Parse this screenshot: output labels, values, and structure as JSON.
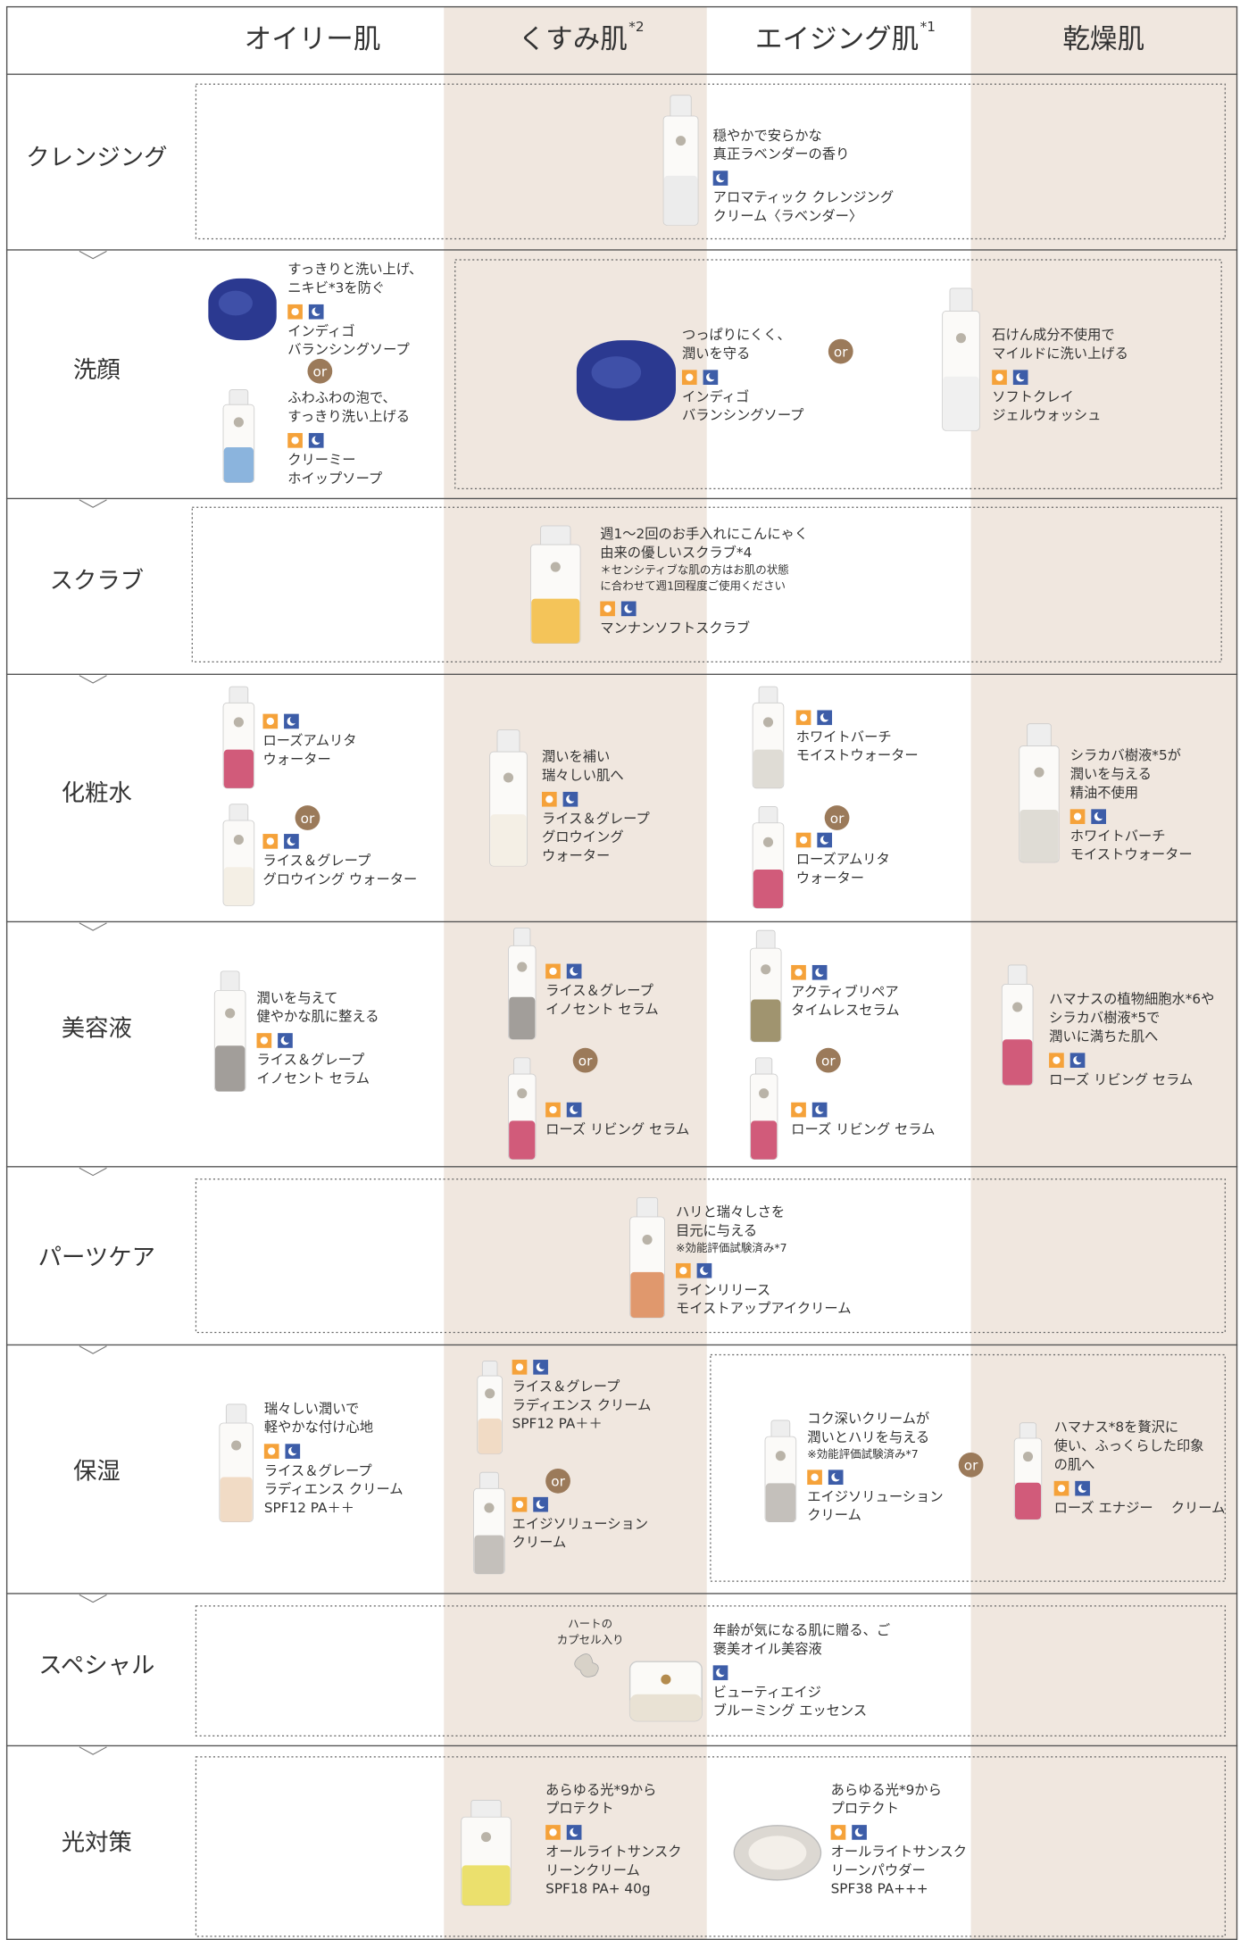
{
  "header": {
    "columns": [
      {
        "label": "オイリー肌"
      },
      {
        "label": "くすみ肌",
        "note": "*2"
      },
      {
        "label": "エイジング肌",
        "note": "*1"
      },
      {
        "label": "乾燥肌"
      }
    ]
  },
  "connector": "or",
  "rows": [
    {
      "label": "クレンジング",
      "products": [
        {
          "desc": [
            "穏やかで安らかな",
            "真正ラベンダーの香り"
          ],
          "name": [
            "アロマティック クレンジング",
            "クリーム〈ラベンダー〉"
          ]
        }
      ]
    },
    {
      "label": "洗顔",
      "products": [
        {
          "desc": [
            "すっきりと洗い上げ、",
            "ニキビ*3を防ぐ"
          ],
          "name": [
            "インディゴ",
            "バランシングソープ"
          ]
        },
        {
          "desc": [
            "ふわふわの泡で、",
            "すっきり洗い上げる"
          ],
          "name": [
            "クリーミー",
            "ホイップソープ"
          ]
        },
        {
          "desc": [
            "つっぱりにくく、",
            "潤いを守る"
          ],
          "name": [
            "インディゴ",
            "バランシングソープ"
          ]
        },
        {
          "desc": [
            "石けん成分不使用で",
            "マイルドに洗い上げる"
          ],
          "name": [
            "ソフトクレイ",
            "ジェルウォッシュ"
          ]
        }
      ]
    },
    {
      "label": "スクラブ",
      "products": [
        {
          "desc": [
            "週1～2回のお手入れにこんにゃく",
            "由来の優しいスクラブ*4"
          ],
          "note": [
            "＊センシティブな肌の方はお肌の状態",
            "に合わせて週1回程度ご使用ください"
          ],
          "name": [
            "マンナンソフトスクラブ"
          ]
        }
      ]
    },
    {
      "label": "化粧水",
      "products": [
        {
          "name": [
            "ローズアムリタ",
            "ウォーター"
          ]
        },
        {
          "name": [
            "ライス＆グレープ",
            "グロウイング ウォーター"
          ]
        },
        {
          "desc": [
            "潤いを補い",
            "瑞々しい肌へ"
          ],
          "name": [
            "ライス＆グレープ",
            "グロウイング",
            "ウォーター"
          ]
        },
        {
          "name": [
            "ホワイトバーチ",
            "モイストウォーター"
          ]
        },
        {
          "name": [
            "ローズアムリタ",
            "ウォーター"
          ]
        },
        {
          "desc": [
            "シラカバ樹液*5が",
            "潤いを与える",
            "精油不使用"
          ],
          "name": [
            "ホワイトバーチ",
            "モイストウォーター"
          ]
        }
      ]
    },
    {
      "label": "美容液",
      "products": [
        {
          "desc": [
            "潤いを与えて",
            "健やかな肌に整える"
          ],
          "name": [
            "ライス＆グレープ",
            "イノセント セラム"
          ]
        },
        {
          "name": [
            "ライス＆グレープ",
            "イノセント セラム"
          ]
        },
        {
          "name": [
            "ローズ リビング セラム"
          ]
        },
        {
          "name": [
            "アクティブリペア",
            "タイムレスセラム"
          ]
        },
        {
          "name": [
            "ローズ リビング セラム"
          ]
        },
        {
          "desc": [
            "ハマナスの植物細胞水*6や",
            "シラカバ樹液*5で",
            "潤いに満ちた肌へ"
          ],
          "name": [
            "ローズ リビング セラム"
          ]
        }
      ]
    },
    {
      "label": "パーツケア",
      "products": [
        {
          "desc": [
            "ハリと瑞々しさを",
            "目元に与える"
          ],
          "note": [
            "※効能評価試験済み*7"
          ],
          "name": [
            "ラインリリース",
            "モイストアップアイクリーム"
          ]
        }
      ]
    },
    {
      "label": "保湿",
      "products": [
        {
          "desc": [
            "瑞々しい潤いで",
            "軽やかな付け心地"
          ],
          "name": [
            "ライス＆グレープ",
            "ラディエンス クリーム",
            "SPF12 PA＋＋"
          ]
        },
        {
          "name": [
            "ライス＆グレープ",
            "ラディエンス クリーム",
            "SPF12 PA＋＋"
          ]
        },
        {
          "name": [
            "エイジソリューション",
            "クリーム"
          ]
        },
        {
          "desc": [
            "コク深いクリームが",
            "潤いとハリを与える"
          ],
          "note": [
            "※効能評価試験済み*7"
          ],
          "name": [
            "エイジソリューション",
            "クリーム"
          ]
        },
        {
          "desc": [
            "ハマナス*8を贅沢に",
            "使い、ふっくらした印象",
            "の肌へ"
          ],
          "name": [
            "ローズ エナジー　 クリーム"
          ]
        }
      ]
    },
    {
      "label": "スペシャル",
      "caption": [
        "ハートの",
        "カプセル入り"
      ],
      "products": [
        {
          "desc": [
            "年齢が気になる肌に贈る、ご",
            "褒美オイル美容液"
          ],
          "name": [
            "ビューティエイジ",
            "ブルーミング エッセンス"
          ]
        }
      ]
    },
    {
      "label": "光対策",
      "products": [
        {
          "desc": [
            "あらゆる光*9から",
            "プロテクト"
          ],
          "name": [
            "オールライトサンスク",
            "リーンクリーム",
            "SPF18 PA+ 40g"
          ]
        },
        {
          "desc": [
            "あらゆる光*9から",
            "プロテクト"
          ],
          "name": [
            "オールライトサンスク",
            "リーンパウダー",
            "SPF38 PA+++"
          ]
        }
      ]
    }
  ]
}
